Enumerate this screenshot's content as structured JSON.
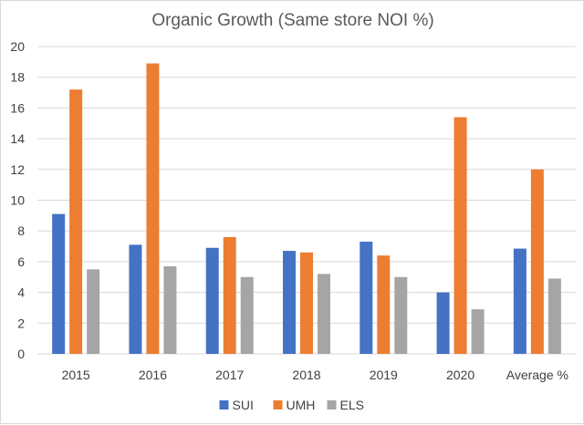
{
  "chart_data": {
    "type": "bar",
    "title": "Organic Growth (Same store NOI %)",
    "xlabel": "",
    "ylabel": "",
    "categories": [
      "2015",
      "2016",
      "2017",
      "2018",
      "2019",
      "2020",
      "Average %"
    ],
    "series": [
      {
        "name": "SUI",
        "color": "#4472C4",
        "values": [
          9.1,
          7.1,
          6.9,
          6.7,
          7.3,
          4.0,
          6.85
        ]
      },
      {
        "name": "UMH",
        "color": "#ED7D31",
        "values": [
          17.2,
          18.9,
          7.6,
          6.6,
          6.4,
          15.4,
          12.0
        ]
      },
      {
        "name": "ELS",
        "color": "#A5A5A5",
        "values": [
          5.5,
          5.7,
          5.0,
          5.2,
          5.0,
          2.9,
          4.9
        ]
      }
    ],
    "ylim": [
      0,
      20
    ],
    "yticks": [
      "0",
      "2",
      "4",
      "6",
      "8",
      "10",
      "12",
      "14",
      "16",
      "18",
      "20"
    ],
    "grid": true,
    "legend_position": "bottom",
    "gridline_color": "#d9d9d9"
  }
}
